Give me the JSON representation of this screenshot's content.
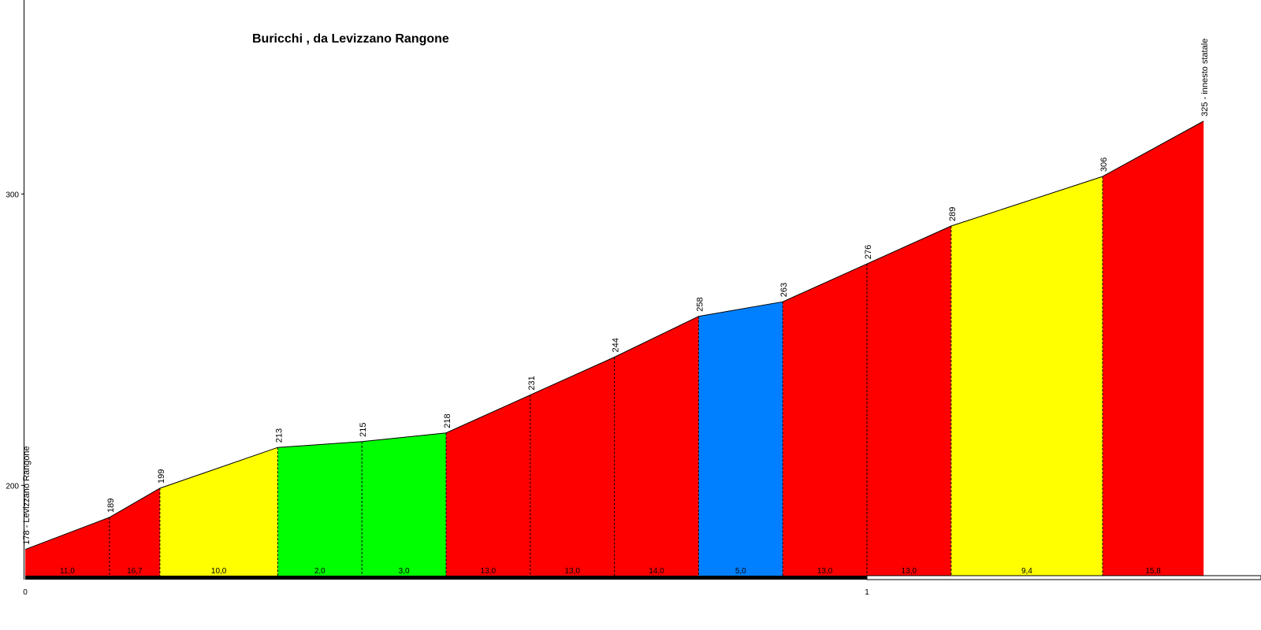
{
  "chart_data": {
    "type": "area",
    "title": "Buricchi , da Levizzano Rangone",
    "xlabel": "",
    "ylabel": "",
    "x_ticks": [
      "0",
      "1"
    ],
    "y_ticks": [
      "200",
      "300"
    ],
    "xlim": [
      0,
      1.47
    ],
    "ylim": [
      169,
      400
    ],
    "points": [
      {
        "x": 0.0,
        "elevation": 178,
        "label": "178 - Levizzano Rangone"
      },
      {
        "x": 0.1,
        "elevation": 189,
        "label": "189"
      },
      {
        "x": 0.16,
        "elevation": 199,
        "label": "199"
      },
      {
        "x": 0.3,
        "elevation": 213,
        "label": "213"
      },
      {
        "x": 0.4,
        "elevation": 215,
        "label": "215"
      },
      {
        "x": 0.5,
        "elevation": 218,
        "label": "218"
      },
      {
        "x": 0.6,
        "elevation": 231,
        "label": "231"
      },
      {
        "x": 0.7,
        "elevation": 244,
        "label": "244"
      },
      {
        "x": 0.8,
        "elevation": 258,
        "label": "258"
      },
      {
        "x": 0.9,
        "elevation": 263,
        "label": "263"
      },
      {
        "x": 1.0,
        "elevation": 276,
        "label": "276"
      },
      {
        "x": 1.1,
        "elevation": 289,
        "label": "289"
      },
      {
        "x": 1.28,
        "elevation": 306,
        "label": "306"
      },
      {
        "x": 1.4,
        "elevation": 325,
        "label": "325 - innesto statale"
      }
    ],
    "segments": [
      {
        "gradient": "11,0",
        "color": "#ff0000"
      },
      {
        "gradient": "16,7",
        "color": "#ff0000"
      },
      {
        "gradient": "10,0",
        "color": "#ffff00"
      },
      {
        "gradient": "2,0",
        "color": "#00ff00"
      },
      {
        "gradient": "3,0",
        "color": "#00ff00"
      },
      {
        "gradient": "13,0",
        "color": "#ff0000"
      },
      {
        "gradient": "13,0",
        "color": "#ff0000"
      },
      {
        "gradient": "14,0",
        "color": "#ff0000"
      },
      {
        "gradient": "5,0",
        "color": "#0080ff"
      },
      {
        "gradient": "13,0",
        "color": "#ff0000"
      },
      {
        "gradient": "13,0",
        "color": "#ff0000"
      },
      {
        "gradient": "9,4",
        "color": "#ffff00"
      },
      {
        "gradient": "15,8",
        "color": "#ff0000"
      }
    ],
    "km_bar_colors": [
      "#000000",
      "#ffffff"
    ],
    "grid": false,
    "legend": "none"
  }
}
